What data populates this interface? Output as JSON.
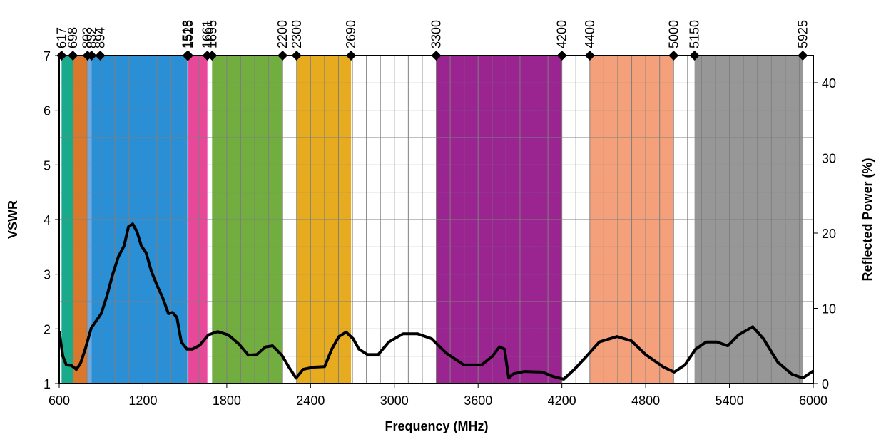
{
  "chart_data": {
    "type": "line",
    "xlabel": "Frequency (MHz)",
    "ylabel": "VSWR",
    "y2label": "Reflected Power (%)",
    "xlim": [
      600,
      6000
    ],
    "xticks": [
      600,
      1200,
      1800,
      2400,
      3000,
      3600,
      4200,
      4800,
      5400,
      6000
    ],
    "ylim": [
      1,
      7
    ],
    "yticks": [
      1,
      2,
      3,
      4,
      5,
      6,
      7
    ],
    "y2lim": [
      0,
      43.6
    ],
    "y2ticks": [
      0,
      10,
      20,
      30,
      40
    ],
    "grid": true,
    "xgrid_step": 100,
    "ygrid_step": 0.5,
    "top_markers": [
      617,
      698,
      803,
      832,
      894,
      1518,
      1525,
      1661,
      1695,
      2200,
      2300,
      2690,
      3300,
      4200,
      4400,
      5000,
      5150,
      5925
    ],
    "bands": [
      {
        "start": 617,
        "end": 698,
        "color": "#19a98b"
      },
      {
        "start": 698,
        "end": 803,
        "color": "#d9782d"
      },
      {
        "start": 803,
        "end": 832,
        "color": "#6fa8dc"
      },
      {
        "start": 832,
        "end": 1518,
        "color": "#2b8fd6"
      },
      {
        "start": 1525,
        "end": 1661,
        "color": "#e8489a"
      },
      {
        "start": 1695,
        "end": 2200,
        "color": "#72ad3f"
      },
      {
        "start": 2300,
        "end": 2690,
        "color": "#e6ab1f"
      },
      {
        "start": 3300,
        "end": 4200,
        "color": "#9a2590"
      },
      {
        "start": 4400,
        "end": 5000,
        "color": "#f4a07a"
      },
      {
        "start": 5150,
        "end": 5925,
        "color": "#979797"
      }
    ],
    "x": [
      600,
      626,
      651,
      687,
      723,
      753,
      789,
      830,
      866,
      901,
      942,
      983,
      1024,
      1065,
      1096,
      1126,
      1157,
      1188,
      1223,
      1259,
      1300,
      1341,
      1382,
      1412,
      1443,
      1474,
      1515,
      1555,
      1607,
      1668,
      1734,
      1811,
      1888,
      1954,
      2015,
      2077,
      2128,
      2194,
      2245,
      2296,
      2347,
      2424,
      2501,
      2552,
      2603,
      2654,
      2705,
      2746,
      2808,
      2884,
      2961,
      3063,
      3165,
      3267,
      3370,
      3497,
      3625,
      3702,
      3753,
      3789,
      3819,
      3855,
      3932,
      4059,
      4136,
      4213,
      4289,
      4366,
      4468,
      4596,
      4698,
      4800,
      4928,
      5005,
      5081,
      5158,
      5234,
      5311,
      5388,
      5465,
      5567,
      5643,
      5746,
      5848,
      5925,
      6000
    ],
    "series": [
      {
        "color": "#000000",
        "values": [
          1.95,
          1.5,
          1.34,
          1.33,
          1.26,
          1.37,
          1.65,
          2.02,
          2.15,
          2.28,
          2.6,
          3.0,
          3.32,
          3.52,
          3.87,
          3.92,
          3.78,
          3.52,
          3.39,
          3.06,
          2.8,
          2.57,
          2.28,
          2.3,
          2.21,
          1.76,
          1.63,
          1.63,
          1.7,
          1.89,
          1.95,
          1.89,
          1.72,
          1.52,
          1.53,
          1.67,
          1.69,
          1.52,
          1.3,
          1.1,
          1.26,
          1.3,
          1.31,
          1.63,
          1.86,
          1.94,
          1.82,
          1.63,
          1.53,
          1.53,
          1.76,
          1.91,
          1.91,
          1.82,
          1.56,
          1.34,
          1.34,
          1.5,
          1.67,
          1.63,
          1.1,
          1.18,
          1.22,
          1.21,
          1.13,
          1.08,
          1.26,
          1.47,
          1.76,
          1.86,
          1.78,
          1.53,
          1.3,
          1.21,
          1.34,
          1.63,
          1.76,
          1.76,
          1.69,
          1.89,
          2.04,
          1.82,
          1.39,
          1.17,
          1.1,
          1.23
        ]
      }
    ]
  }
}
